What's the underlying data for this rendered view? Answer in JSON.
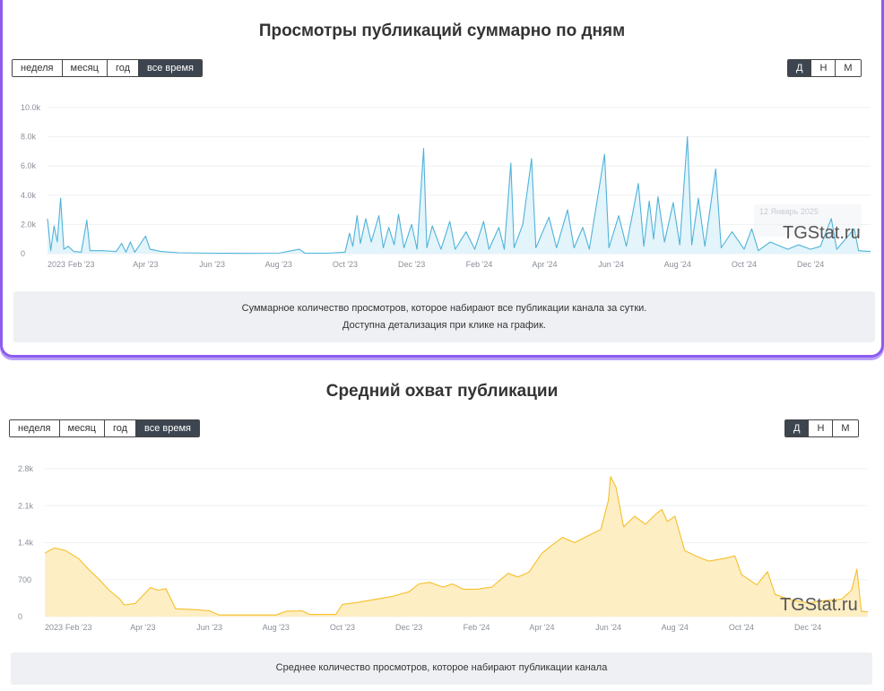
{
  "views_card": {
    "title": "Просмотры публикаций суммарно по дням",
    "periods": [
      "неделя",
      "месяц",
      "год",
      "все время"
    ],
    "active_period": 3,
    "granularity": [
      "Д",
      "Н",
      "М"
    ],
    "active_granularity": 0,
    "note_line1": "Суммарное количество просмотров, которое набирают все публикации канала за сутки.",
    "note_line2": "Доступна детализация при клике на график.",
    "watermark": "TGStat.ru",
    "tooltip_hint": "12 Январь 2025"
  },
  "reach_card": {
    "title": "Средний охват публикации",
    "periods": [
      "неделя",
      "месяц",
      "год",
      "все время"
    ],
    "active_period": 3,
    "granularity": [
      "Д",
      "Н",
      "М"
    ],
    "active_granularity": 0,
    "note": "Среднее количество просмотров, которое набирают публикации канала",
    "watermark": "TGStat.ru"
  },
  "chart_data": [
    {
      "type": "line",
      "title": "Просмотры публикаций суммарно по дням",
      "color": "#4fb3d9",
      "fill": "#e3f4fb",
      "x_range": [
        "2023-01-01",
        "2025-01-25"
      ],
      "ylim": [
        0,
        10000
      ],
      "yticks": [
        "0",
        "2.0k",
        "4.0k",
        "6.0k",
        "8.0k",
        "10.0k"
      ],
      "ytick_values": [
        0,
        2000,
        4000,
        6000,
        8000,
        10000
      ],
      "xticks": [
        "2023",
        "Feb '23",
        "Apr '23",
        "Jun '23",
        "Aug '23",
        "Oct '23",
        "Dec '23",
        "Feb '24",
        "Apr '24",
        "Jun '24",
        "Aug '24",
        "Oct '24",
        "Dec '24"
      ],
      "xtick_dates": [
        "2023-01-01",
        "2023-02-01",
        "2023-04-01",
        "2023-06-01",
        "2023-08-01",
        "2023-10-01",
        "2023-12-01",
        "2024-02-01",
        "2024-04-01",
        "2024-06-01",
        "2024-08-01",
        "2024-10-01",
        "2024-12-01"
      ],
      "grid": true,
      "points": [
        [
          "2023-01-01",
          2400
        ],
        [
          "2023-01-04",
          200
        ],
        [
          "2023-01-07",
          1900
        ],
        [
          "2023-01-10",
          800
        ],
        [
          "2023-01-13",
          3800
        ],
        [
          "2023-01-16",
          300
        ],
        [
          "2023-01-20",
          500
        ],
        [
          "2023-01-25",
          150
        ],
        [
          "2023-02-01",
          100
        ],
        [
          "2023-02-06",
          2300
        ],
        [
          "2023-02-09",
          200
        ],
        [
          "2023-02-20",
          200
        ],
        [
          "2023-03-05",
          150
        ],
        [
          "2023-03-10",
          700
        ],
        [
          "2023-03-14",
          100
        ],
        [
          "2023-03-18",
          800
        ],
        [
          "2023-03-22",
          100
        ],
        [
          "2023-04-01",
          1200
        ],
        [
          "2023-04-05",
          300
        ],
        [
          "2023-04-15",
          150
        ],
        [
          "2023-05-01",
          60
        ],
        [
          "2023-06-01",
          30
        ],
        [
          "2023-07-01",
          20
        ],
        [
          "2023-08-01",
          30
        ],
        [
          "2023-08-20",
          300
        ],
        [
          "2023-08-25",
          30
        ],
        [
          "2023-09-15",
          30
        ],
        [
          "2023-10-01",
          100
        ],
        [
          "2023-10-05",
          1400
        ],
        [
          "2023-10-08",
          500
        ],
        [
          "2023-10-12",
          2600
        ],
        [
          "2023-10-15",
          700
        ],
        [
          "2023-10-20",
          2400
        ],
        [
          "2023-10-25",
          800
        ],
        [
          "2023-11-01",
          2600
        ],
        [
          "2023-11-05",
          400
        ],
        [
          "2023-11-10",
          1800
        ],
        [
          "2023-11-15",
          600
        ],
        [
          "2023-11-19",
          2700
        ],
        [
          "2023-11-24",
          400
        ],
        [
          "2023-12-01",
          2000
        ],
        [
          "2023-12-06",
          300
        ],
        [
          "2023-12-12",
          7200
        ],
        [
          "2023-12-15",
          400
        ],
        [
          "2023-12-20",
          1900
        ],
        [
          "2023-12-28",
          300
        ],
        [
          "2024-01-05",
          2200
        ],
        [
          "2024-01-10",
          300
        ],
        [
          "2024-01-20",
          1500
        ],
        [
          "2024-01-28",
          300
        ],
        [
          "2024-02-05",
          2200
        ],
        [
          "2024-02-10",
          300
        ],
        [
          "2024-02-19",
          1800
        ],
        [
          "2024-02-24",
          300
        ],
        [
          "2024-03-01",
          6200
        ],
        [
          "2024-03-04",
          400
        ],
        [
          "2024-03-12",
          2000
        ],
        [
          "2024-03-20",
          6500
        ],
        [
          "2024-03-24",
          400
        ],
        [
          "2024-04-05",
          2500
        ],
        [
          "2024-04-12",
          400
        ],
        [
          "2024-04-22",
          3000
        ],
        [
          "2024-04-28",
          400
        ],
        [
          "2024-05-06",
          1800
        ],
        [
          "2024-05-12",
          300
        ],
        [
          "2024-05-26",
          6800
        ],
        [
          "2024-05-30",
          400
        ],
        [
          "2024-06-08",
          2600
        ],
        [
          "2024-06-15",
          500
        ],
        [
          "2024-06-26",
          4800
        ],
        [
          "2024-07-01",
          500
        ],
        [
          "2024-07-06",
          3600
        ],
        [
          "2024-07-10",
          1000
        ],
        [
          "2024-07-14",
          3900
        ],
        [
          "2024-07-20",
          800
        ],
        [
          "2024-07-28",
          3500
        ],
        [
          "2024-08-03",
          600
        ],
        [
          "2024-08-10",
          8000
        ],
        [
          "2024-08-14",
          600
        ],
        [
          "2024-08-20",
          3800
        ],
        [
          "2024-08-26",
          500
        ],
        [
          "2024-09-05",
          5800
        ],
        [
          "2024-09-10",
          400
        ],
        [
          "2024-09-20",
          1500
        ],
        [
          "2024-10-01",
          300
        ],
        [
          "2024-10-08",
          1700
        ],
        [
          "2024-10-14",
          200
        ],
        [
          "2024-10-25",
          800
        ],
        [
          "2024-11-10",
          300
        ],
        [
          "2024-11-20",
          600
        ],
        [
          "2024-12-01",
          300
        ],
        [
          "2024-12-10",
          500
        ],
        [
          "2024-12-20",
          2400
        ],
        [
          "2024-12-25",
          300
        ],
        [
          "2025-01-10",
          1700
        ],
        [
          "2025-01-14",
          200
        ],
        [
          "2025-01-25",
          150
        ]
      ]
    },
    {
      "type": "area",
      "title": "Средний охват публикации",
      "color": "#f6bf2a",
      "fill": "#fdeec4",
      "x_range": [
        "2023-01-01",
        "2025-01-25"
      ],
      "ylim": [
        0,
        2800
      ],
      "yticks": [
        "0",
        "700",
        "1.4k",
        "2.1k",
        "2.8k"
      ],
      "ytick_values": [
        0,
        700,
        1400,
        2100,
        2800
      ],
      "xticks": [
        "2023",
        "Feb '23",
        "Apr '23",
        "Jun '23",
        "Aug '23",
        "Oct '23",
        "Dec '23",
        "Feb '24",
        "Apr '24",
        "Jun '24",
        "Aug '24",
        "Oct '24",
        "Dec '24"
      ],
      "xtick_dates": [
        "2023-01-01",
        "2023-02-01",
        "2023-04-01",
        "2023-06-01",
        "2023-08-01",
        "2023-10-01",
        "2023-12-01",
        "2024-02-01",
        "2024-04-01",
        "2024-06-01",
        "2024-08-01",
        "2024-10-01",
        "2024-12-01"
      ],
      "grid": true,
      "points": [
        [
          "2023-01-01",
          1200
        ],
        [
          "2023-01-05",
          1250
        ],
        [
          "2023-01-10",
          1300
        ],
        [
          "2023-01-20",
          1250
        ],
        [
          "2023-02-01",
          1100
        ],
        [
          "2023-02-10",
          900
        ],
        [
          "2023-02-20",
          700
        ],
        [
          "2023-03-01",
          500
        ],
        [
          "2023-03-10",
          350
        ],
        [
          "2023-03-15",
          220
        ],
        [
          "2023-03-25",
          250
        ],
        [
          "2023-04-01",
          400
        ],
        [
          "2023-04-08",
          550
        ],
        [
          "2023-04-15",
          500
        ],
        [
          "2023-04-22",
          530
        ],
        [
          "2023-05-01",
          150
        ],
        [
          "2023-05-20",
          130
        ],
        [
          "2023-06-01",
          110
        ],
        [
          "2023-06-10",
          30
        ],
        [
          "2023-08-01",
          30
        ],
        [
          "2023-08-10",
          100
        ],
        [
          "2023-08-25",
          110
        ],
        [
          "2023-09-01",
          40
        ],
        [
          "2023-09-25",
          40
        ],
        [
          "2023-10-01",
          230
        ],
        [
          "2023-10-15",
          270
        ],
        [
          "2023-11-01",
          330
        ],
        [
          "2023-11-15",
          380
        ],
        [
          "2023-12-01",
          470
        ],
        [
          "2023-12-10",
          620
        ],
        [
          "2023-12-20",
          650
        ],
        [
          "2024-01-01",
          560
        ],
        [
          "2024-01-10",
          620
        ],
        [
          "2024-01-20",
          520
        ],
        [
          "2024-02-01",
          520
        ],
        [
          "2024-02-15",
          560
        ],
        [
          "2024-03-01",
          820
        ],
        [
          "2024-03-10",
          750
        ],
        [
          "2024-03-20",
          840
        ],
        [
          "2024-04-01",
          1200
        ],
        [
          "2024-04-10",
          1350
        ],
        [
          "2024-04-20",
          1500
        ],
        [
          "2024-05-01",
          1400
        ],
        [
          "2024-05-15",
          1550
        ],
        [
          "2024-05-25",
          1650
        ],
        [
          "2024-06-01",
          2200
        ],
        [
          "2024-06-03",
          2650
        ],
        [
          "2024-06-08",
          2450
        ],
        [
          "2024-06-15",
          1700
        ],
        [
          "2024-06-25",
          1900
        ],
        [
          "2024-07-05",
          1750
        ],
        [
          "2024-07-15",
          1950
        ],
        [
          "2024-07-20",
          2030
        ],
        [
          "2024-07-25",
          1800
        ],
        [
          "2024-08-01",
          1900
        ],
        [
          "2024-08-10",
          1250
        ],
        [
          "2024-08-20",
          1150
        ],
        [
          "2024-09-01",
          1050
        ],
        [
          "2024-09-15",
          1100
        ],
        [
          "2024-09-25",
          1150
        ],
        [
          "2024-10-01",
          800
        ],
        [
          "2024-10-15",
          600
        ],
        [
          "2024-10-25",
          850
        ],
        [
          "2024-11-01",
          420
        ],
        [
          "2024-11-15",
          320
        ],
        [
          "2024-12-01",
          260
        ],
        [
          "2024-12-15",
          300
        ],
        [
          "2025-01-01",
          330
        ],
        [
          "2025-01-10",
          500
        ],
        [
          "2025-01-15",
          900
        ],
        [
          "2025-01-19",
          100
        ],
        [
          "2025-01-25",
          90
        ]
      ]
    }
  ]
}
